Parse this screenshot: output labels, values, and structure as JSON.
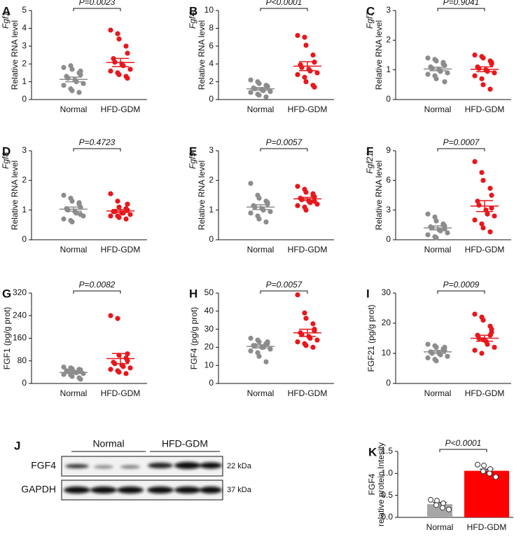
{
  "chart_data": [
    {
      "type": "dot",
      "panel": "A",
      "ylabel_gene": "Fgf1",
      "ylabel": "Relative RNA level",
      "annotation": "P=0.0023",
      "categories": [
        "Normal",
        "HFD-GDM"
      ],
      "colors": [
        "#8c8c8c",
        "#e8171c"
      ],
      "values": [
        [
          1.8,
          1.9,
          1.7,
          1.5,
          1.4,
          1.3,
          1.2,
          1.1,
          1.0,
          0.9,
          0.8,
          0.6,
          0.5,
          0.4,
          1.6
        ],
        [
          3.9,
          3.7,
          3.4,
          3.0,
          2.6,
          2.3,
          2.1,
          2.0,
          1.9,
          1.7,
          1.6,
          1.5,
          1.4,
          1.3,
          1.2
        ]
      ],
      "means": [
        1.13,
        2.08
      ],
      "sems": [
        0.13,
        0.23
      ],
      "ylim": [
        0,
        5
      ],
      "yticks": [
        0,
        1,
        2,
        3,
        4,
        5
      ]
    },
    {
      "type": "dot",
      "panel": "B",
      "ylabel_gene": "Fgf4",
      "ylabel": "Relative RNA level",
      "annotation": "P<0.0001",
      "categories": [
        "Normal",
        "HFD-GDM"
      ],
      "colors": [
        "#8c8c8c",
        "#e8171c"
      ],
      "values": [
        [
          2.2,
          2.0,
          1.8,
          1.6,
          1.5,
          1.3,
          1.2,
          1.1,
          1.0,
          0.9,
          0.8,
          0.6,
          0.5,
          0.3,
          1.4
        ],
        [
          7.2,
          7.0,
          6.1,
          5.0,
          4.2,
          3.9,
          3.6,
          3.4,
          3.2,
          3.0,
          2.8,
          2.5,
          2.0,
          1.6,
          1.4
        ]
      ],
      "means": [
        1.2,
        3.75
      ],
      "sems": [
        0.15,
        0.5
      ],
      "ylim": [
        0,
        10
      ],
      "yticks": [
        0,
        2,
        4,
        6,
        8,
        10
      ]
    },
    {
      "type": "dot",
      "panel": "C",
      "ylabel_gene": "Fgf7",
      "ylabel": "Relative RNA level",
      "annotation": "P=0.9041",
      "categories": [
        "Normal",
        "HFD-GDM"
      ],
      "colors": [
        "#8c8c8c",
        "#e8171c"
      ],
      "values": [
        [
          1.4,
          1.35,
          1.3,
          1.2,
          1.15,
          1.1,
          1.05,
          1.0,
          0.95,
          0.9,
          0.85,
          0.8,
          0.7,
          1.25,
          0.6
        ],
        [
          1.5,
          1.45,
          1.4,
          1.3,
          1.2,
          1.1,
          1.05,
          1.0,
          0.95,
          0.9,
          0.8,
          0.7,
          0.5,
          0.35,
          1.25
        ]
      ],
      "means": [
        1.03,
        1.02
      ],
      "sems": [
        0.06,
        0.08
      ],
      "ylim": [
        0,
        3
      ],
      "yticks": [
        0,
        1,
        2,
        3
      ]
    },
    {
      "type": "dot",
      "panel": "D",
      "ylabel_gene": "Fgf8",
      "ylabel": "Relative RNA level",
      "annotation": "P=0.4723",
      "categories": [
        "Normal",
        "HFD-GDM"
      ],
      "colors": [
        "#8c8c8c",
        "#e8171c"
      ],
      "values": [
        [
          1.5,
          1.4,
          1.3,
          1.2,
          1.1,
          1.05,
          1.0,
          0.95,
          0.9,
          0.8,
          0.7,
          0.65,
          0.6,
          1.25,
          0.85
        ],
        [
          1.55,
          1.3,
          1.1,
          1.05,
          1.0,
          0.95,
          0.95,
          0.9,
          0.9,
          0.85,
          0.8,
          0.8,
          0.75,
          0.7,
          1.2
        ]
      ],
      "means": [
        1.03,
        0.97
      ],
      "sems": [
        0.07,
        0.05
      ],
      "ylim": [
        0,
        3
      ],
      "yticks": [
        0,
        1,
        2,
        3
      ]
    },
    {
      "type": "dot",
      "panel": "E",
      "ylabel_gene": "Fgf9",
      "ylabel": "Relative RNA level",
      "annotation": "P=0.0057",
      "categories": [
        "Normal",
        "HFD-GDM"
      ],
      "colors": [
        "#8c8c8c",
        "#e8171c"
      ],
      "values": [
        [
          1.9,
          1.5,
          1.4,
          1.3,
          1.2,
          1.15,
          1.1,
          1.05,
          1.0,
          0.95,
          0.9,
          0.8,
          0.7,
          0.6,
          1.25
        ],
        [
          1.8,
          1.7,
          1.6,
          1.5,
          1.45,
          1.4,
          1.35,
          1.3,
          1.25,
          1.2,
          1.15,
          1.1,
          1.0,
          1.55,
          1.3
        ]
      ],
      "means": [
        1.1,
        1.38
      ],
      "sems": [
        0.08,
        0.05
      ],
      "ylim": [
        0,
        3
      ],
      "yticks": [
        0,
        1,
        2,
        3
      ]
    },
    {
      "type": "dot",
      "panel": "F",
      "ylabel_gene": "Fgf21",
      "ylabel": "Relative RNA level",
      "annotation": "P=0.0007",
      "categories": [
        "Normal",
        "HFD-GDM"
      ],
      "colors": [
        "#8c8c8c",
        "#e8171c"
      ],
      "values": [
        [
          2.6,
          2.3,
          1.9,
          1.6,
          1.4,
          1.3,
          1.2,
          1.0,
          0.9,
          0.7,
          0.5,
          0.3,
          0.2,
          1.5,
          1.1
        ],
        [
          7.9,
          6.8,
          6.0,
          5.2,
          4.5,
          3.9,
          3.5,
          3.0,
          2.6,
          2.4,
          2.0,
          1.6,
          1.2,
          0.8,
          3.2
        ]
      ],
      "means": [
        1.2,
        3.4
      ],
      "sems": [
        0.2,
        0.55
      ],
      "ylim": [
        0,
        9
      ],
      "yticks": [
        0,
        3,
        6,
        9
      ]
    },
    {
      "type": "dot",
      "panel": "G",
      "ylabel": "FGF1 (pg/g prot)",
      "annotation": "P=0.0082",
      "categories": [
        "Normal",
        "HFD-GDM"
      ],
      "colors": [
        "#8c8c8c",
        "#e8171c"
      ],
      "values": [
        [
          58,
          55,
          52,
          50,
          48,
          45,
          42,
          40,
          38,
          35,
          32,
          30,
          25,
          20,
          15
        ],
        [
          240,
          230,
          100,
          90,
          80,
          75,
          70,
          65,
          60,
          55,
          50,
          45,
          40,
          35,
          105
        ]
      ],
      "means": [
        39,
        88
      ],
      "sems": [
        3.5,
        18
      ],
      "ylim": [
        0,
        320
      ],
      "yticks": [
        0,
        80,
        160,
        240,
        320
      ]
    },
    {
      "type": "dot",
      "panel": "H",
      "ylabel": "FGF4 (pg/g prot)",
      "annotation": "P=0.0057",
      "categories": [
        "Normal",
        "HFD-GDM"
      ],
      "colors": [
        "#8c8c8c",
        "#e8171c"
      ],
      "values": [
        [
          25,
          24,
          23,
          22,
          22,
          21,
          21,
          20,
          20,
          19,
          18,
          17,
          15,
          12,
          23
        ],
        [
          49,
          39,
          36,
          33,
          30,
          28,
          27,
          26,
          25,
          24,
          23,
          22,
          21,
          20,
          29
        ]
      ],
      "means": [
        20.5,
        28
      ],
      "sems": [
        0.9,
        2
      ],
      "ylim": [
        0,
        50
      ],
      "yticks": [
        0,
        10,
        20,
        30,
        40,
        50
      ]
    },
    {
      "type": "dot",
      "panel": "I",
      "ylabel": "FGF21 (pg/g prot)",
      "annotation": "P=0.0009",
      "categories": [
        "Normal",
        "HFD-GDM"
      ],
      "colors": [
        "#8c8c8c",
        "#e8171c"
      ],
      "values": [
        [
          13,
          12.5,
          12,
          11.5,
          11,
          10.5,
          10,
          10,
          9.5,
          9,
          8.5,
          8,
          7.5,
          11,
          12
        ],
        [
          23,
          22,
          21,
          19,
          17,
          16,
          15,
          14,
          13,
          12,
          11,
          10,
          14.5,
          16,
          18
        ]
      ],
      "means": [
        10.5,
        15
      ],
      "sems": [
        0.5,
        1
      ],
      "ylim": [
        0,
        30
      ],
      "yticks": [
        0,
        10,
        20,
        30
      ]
    },
    {
      "type": "bar",
      "panel": "K",
      "ylabel_gene": "FGF4",
      "ylabel": "relative protein Intesity",
      "annotation": "P<0.0001",
      "categories": [
        "Normal",
        "HFD-GDM"
      ],
      "colors": [
        "#a6a6a6",
        "#ff0000"
      ],
      "values": [
        0.3,
        1.06
      ],
      "errors": [
        0.04,
        0.04
      ],
      "points": [
        [
          0.4,
          0.38,
          0.32,
          0.28,
          0.22,
          0.18
        ],
        [
          1.2,
          1.18,
          1.1,
          1.05,
          1.0,
          0.92
        ]
      ],
      "ylim": [
        0,
        1.5
      ],
      "yticks": [
        {
          "value": 0,
          "label": "0.0"
        },
        0.5,
        {
          "value": 1,
          "label": "1.0"
        },
        1.5
      ]
    }
  ],
  "blot": {
    "panel": "J",
    "groups": [
      "Normal",
      "HFD-GDM"
    ],
    "rows": [
      "FGF4",
      "GAPDH"
    ],
    "sizes": [
      "22 kDa",
      "37 kDa"
    ]
  }
}
